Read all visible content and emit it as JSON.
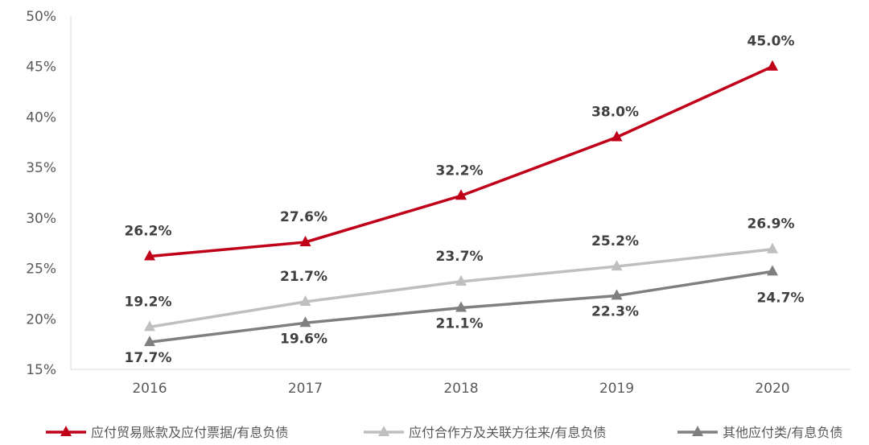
{
  "chart_data": {
    "type": "line",
    "categories": [
      "2016",
      "2017",
      "2018",
      "2019",
      "2020"
    ],
    "ylim": [
      0.15,
      0.5
    ],
    "yticks": [
      "15%",
      "20%",
      "25%",
      "30%",
      "35%",
      "40%",
      "45%",
      "50%"
    ],
    "grid": false,
    "legend_position": "bottom",
    "series": [
      {
        "name": "应付贸易账款及应付票据/有息负债",
        "color": "#C00018",
        "values": [
          26.2,
          27.6,
          32.2,
          38.0,
          45.0
        ],
        "labels": [
          "26.2%",
          "27.6%",
          "32.2%",
          "38.0%",
          "45.0%"
        ]
      },
      {
        "name": "应付合作方及关联方往来/有息负债",
        "color": "#BFBFBF",
        "values": [
          19.2,
          21.7,
          23.7,
          25.2,
          26.9
        ],
        "labels": [
          "19.2%",
          "21.7%",
          "23.7%",
          "25.2%",
          "26.9%"
        ]
      },
      {
        "name": "其他应付类/有息负债",
        "color": "#7F7F7F",
        "values": [
          17.7,
          19.6,
          21.1,
          22.3,
          24.7
        ],
        "labels": [
          "17.7%",
          "19.6%",
          "21.1%",
          "22.3%",
          "24.7%"
        ]
      }
    ]
  }
}
